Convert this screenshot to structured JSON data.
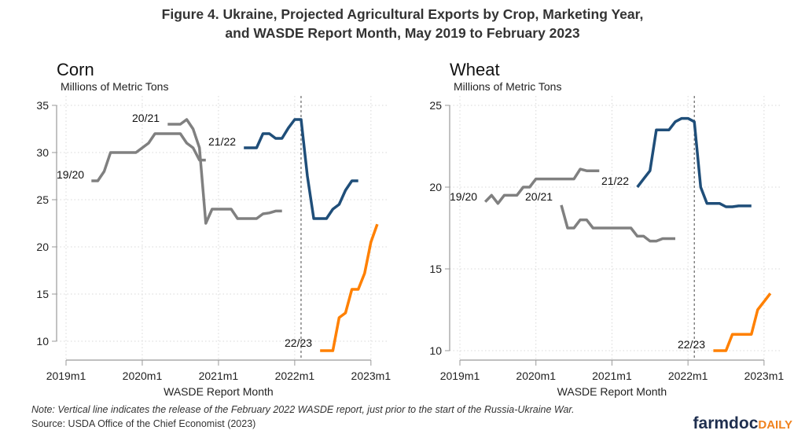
{
  "title_line1": "Figure 4. Ukraine, Projected Agricultural Exports by Crop, Marketing Year,",
  "title_line2": "and WASDE Report Month, May 2019 to February 2023",
  "note": "Note: Vertical line indicates the release of the February 2022 WASDE report, just prior to the start of the Russia-Ukraine War.",
  "source": "Source: USDA Office of the Chief Economist (2023)",
  "logo": {
    "part1": "farmdoc",
    "part2": "DAILY",
    "color1": "#1f2f4f",
    "color2": "#f0821e"
  },
  "chart_data": [
    {
      "type": "line",
      "title": "Corn",
      "ylabel": "Millions of Metric Tons",
      "xlabel": "WASDE Report Month",
      "xticks": [
        "2019m1",
        "2020m1",
        "2021m1",
        "2022m1",
        "2023m1"
      ],
      "yticks": [
        10,
        15,
        20,
        25,
        30,
        35
      ],
      "ylim": [
        10,
        35
      ],
      "grid": true,
      "vline": "2022m2",
      "series": [
        {
          "name": "19/20",
          "color": "#808080",
          "x": [
            "2019m5",
            "2019m6",
            "2019m7",
            "2019m8",
            "2019m9",
            "2019m10",
            "2019m11",
            "2019m12",
            "2020m1",
            "2020m2",
            "2020m3",
            "2020m4",
            "2020m5",
            "2020m6",
            "2020m7",
            "2020m8",
            "2020m9",
            "2020m10",
            "2020m11"
          ],
          "y": [
            27,
            27,
            28,
            30,
            30,
            30,
            30,
            30,
            30.5,
            31,
            32,
            32,
            32,
            32,
            32,
            31,
            30.5,
            29.2,
            29.2
          ]
        },
        {
          "name": "20/21",
          "color": "#808080",
          "x": [
            "2020m5",
            "2020m6",
            "2020m7",
            "2020m8",
            "2020m9",
            "2020m10",
            "2020m11",
            "2020m12",
            "2021m1",
            "2021m2",
            "2021m3",
            "2021m4",
            "2021m5",
            "2021m6",
            "2021m7",
            "2021m8",
            "2021m9",
            "2021m10",
            "2021m11"
          ],
          "y": [
            33,
            33,
            33,
            33.5,
            32.5,
            30.5,
            22.5,
            24,
            24,
            24,
            24,
            23,
            23,
            23,
            23,
            23.5,
            23.6,
            23.8,
            23.8
          ]
        },
        {
          "name": "21/22",
          "color": "#1f4e79",
          "x": [
            "2021m5",
            "2021m6",
            "2021m7",
            "2021m8",
            "2021m9",
            "2021m10",
            "2021m11",
            "2021m12",
            "2022m1",
            "2022m2",
            "2022m3",
            "2022m4",
            "2022m5",
            "2022m6",
            "2022m7",
            "2022m8",
            "2022m9",
            "2022m10",
            "2022m11"
          ],
          "y": [
            30.5,
            30.5,
            30.5,
            32,
            32,
            31.5,
            31.5,
            32.6,
            33.5,
            33.5,
            27.5,
            23,
            23,
            23,
            24,
            24.5,
            26,
            27,
            27
          ]
        },
        {
          "name": "22/23",
          "color": "#ff8000",
          "x": [
            "2022m5",
            "2022m6",
            "2022m7",
            "2022m8",
            "2022m9",
            "2022m10",
            "2022m11",
            "2022m12",
            "2023m1",
            "2023m2"
          ],
          "y": [
            9,
            9,
            9,
            12.5,
            13,
            15.5,
            15.5,
            17.2,
            20.5,
            22.4
          ]
        }
      ]
    },
    {
      "type": "line",
      "title": "Wheat",
      "ylabel": "Millions of Metric Tons",
      "xlabel": "WASDE Report Month",
      "xticks": [
        "2019m1",
        "2020m1",
        "2021m1",
        "2022m1",
        "2023m1"
      ],
      "yticks": [
        10,
        15,
        20,
        25
      ],
      "ylim": [
        10,
        25
      ],
      "grid": true,
      "vline": "2022m2",
      "series": [
        {
          "name": "19/20",
          "color": "#808080",
          "x": [
            "2019m5",
            "2019m6",
            "2019m7",
            "2019m8",
            "2019m9",
            "2019m10",
            "2019m11",
            "2019m12",
            "2020m1",
            "2020m2",
            "2020m3",
            "2020m4",
            "2020m5",
            "2020m6",
            "2020m7",
            "2020m8",
            "2020m9",
            "2020m10",
            "2020m11"
          ],
          "y": [
            19.1,
            19.5,
            19,
            19.5,
            19.5,
            19.5,
            20,
            20,
            20.5,
            20.5,
            20.5,
            20.5,
            20.5,
            20.5,
            20.5,
            21.1,
            21,
            21,
            21
          ]
        },
        {
          "name": "20/21",
          "color": "#808080",
          "x": [
            "2020m5",
            "2020m6",
            "2020m7",
            "2020m8",
            "2020m9",
            "2020m10",
            "2020m11",
            "2020m12",
            "2021m1",
            "2021m2",
            "2021m3",
            "2021m4",
            "2021m5",
            "2021m6",
            "2021m7",
            "2021m8",
            "2021m9",
            "2021m10",
            "2021m11"
          ],
          "y": [
            18.9,
            17.5,
            17.5,
            18,
            18,
            17.5,
            17.5,
            17.5,
            17.5,
            17.5,
            17.5,
            17.5,
            17,
            17,
            16.7,
            16.7,
            16.85,
            16.85,
            16.85
          ]
        },
        {
          "name": "21/22",
          "color": "#1f4e79",
          "x": [
            "2021m5",
            "2021m6",
            "2021m7",
            "2021m8",
            "2021m9",
            "2021m10",
            "2021m11",
            "2021m12",
            "2022m1",
            "2022m2",
            "2022m3",
            "2022m4",
            "2022m5",
            "2022m6",
            "2022m7",
            "2022m8",
            "2022m9",
            "2022m10",
            "2022m11"
          ],
          "y": [
            20,
            20.5,
            21,
            23.5,
            23.5,
            23.5,
            24,
            24.2,
            24.2,
            24,
            20,
            19,
            19,
            19,
            18.8,
            18.8,
            18.85,
            18.85,
            18.85
          ]
        },
        {
          "name": "22/23",
          "color": "#ff8000",
          "x": [
            "2022m5",
            "2022m6",
            "2022m7",
            "2022m8",
            "2022m9",
            "2022m10",
            "2022m11",
            "2022m12",
            "2023m1",
            "2023m2"
          ],
          "y": [
            10,
            10,
            10,
            11,
            11,
            11,
            11,
            12.5,
            13,
            13.5
          ]
        }
      ]
    }
  ]
}
